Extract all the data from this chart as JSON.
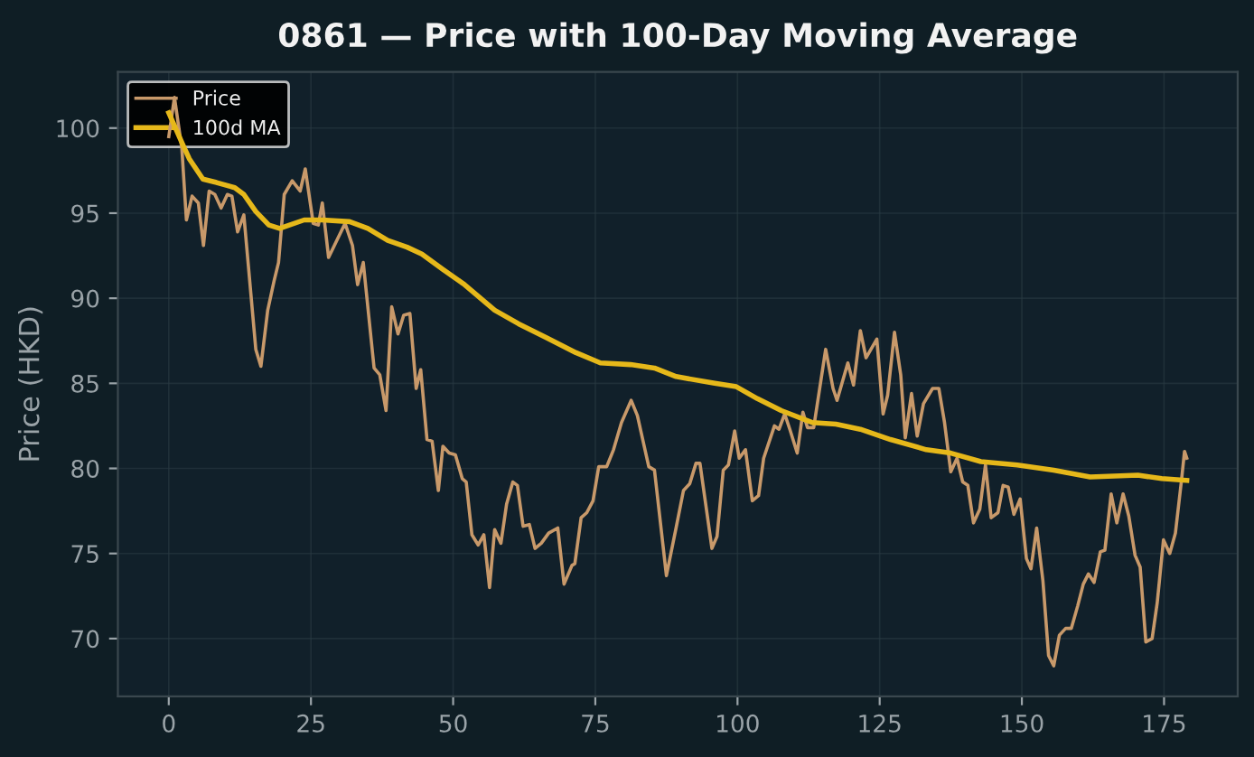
{
  "chart_data": {
    "type": "line",
    "title": "0861 — Price with 100-Day Moving Average",
    "ylabel": "Price (HKD)",
    "xlim": [
      -8.95,
      187.95
    ],
    "ylim": [
      66.6,
      103.3
    ],
    "xticks": [
      0,
      25,
      50,
      75,
      100,
      125,
      150,
      175
    ],
    "yticks": [
      70,
      75,
      80,
      85,
      90,
      95,
      100
    ],
    "grid": true,
    "legend": "top left",
    "marker": "none",
    "line_style": "solid",
    "series": [
      {
        "name": "Price",
        "color": "#c8996a",
        "x": [
          0,
          1,
          2.3,
          3.1,
          4.1,
          5.2,
          6.1,
          7.1,
          8.1,
          9.2,
          10.3,
          11.1,
          12.1,
          13.2,
          15.3,
          16.2,
          17.4,
          18.5,
          19.3,
          20.3,
          21.7,
          23.1,
          24,
          25.4,
          26.3,
          27,
          28.1,
          31,
          32.3,
          33.2,
          34.2,
          36.1,
          37.1,
          38.2,
          39.2,
          40.3,
          41.3,
          42.4,
          43.5,
          44.3,
          45.4,
          46.3,
          47.4,
          48.2,
          49.3,
          50.4,
          51.6,
          52.3,
          53.3,
          54.4,
          55.4,
          56.4,
          57.3,
          58.4,
          59.4,
          60.5,
          61.3,
          62.3,
          63.4,
          64.4,
          65.5,
          66.8,
          68.4,
          69.5,
          70.9,
          71.4,
          72.5,
          73.5,
          74.6,
          75.6,
          77,
          78.2,
          79.6,
          81.3,
          82.4,
          84.4,
          85.4,
          87.5,
          89.2,
          90.5,
          91.6,
          92.7,
          93.4,
          95.5,
          96.4,
          97.5,
          98.4,
          99.5,
          100.3,
          101.4,
          102.6,
          103.7,
          104.6,
          106.5,
          107.3,
          108.3,
          109.2,
          110.5,
          111.5,
          112.3,
          113.4,
          115.5,
          116.8,
          117.5,
          119.4,
          120.4,
          121.6,
          122.6,
          124.5,
          125.6,
          126.4,
          127.6,
          128.7,
          129.5,
          130.6,
          131.6,
          132.7,
          134.3,
          135.4,
          136.4,
          137.5,
          138.6,
          139.6,
          140.5,
          141.5,
          142.6,
          143.6,
          144.6,
          145.8,
          146.7,
          147.6,
          148.6,
          149.7,
          150.8,
          151.6,
          152.6,
          153.7,
          154.7,
          155.6,
          156.6,
          157.7,
          158.7,
          159.8,
          160.8,
          161.7,
          162.7,
          163.8,
          164.6,
          165.7,
          166.7,
          167.8,
          168.8,
          169.9,
          170.8,
          171.8,
          172.9,
          173.8,
          174.9,
          176,
          177,
          178.1,
          178.6,
          179
        ],
        "values": [
          99.5,
          101.8,
          98.8,
          94.6,
          96,
          95.6,
          93.1,
          96.3,
          96.1,
          95.3,
          96.1,
          96,
          93.9,
          94.9,
          87,
          86,
          89.3,
          91,
          92.1,
          96.1,
          96.9,
          96.3,
          97.6,
          94.4,
          94.3,
          95.6,
          92.4,
          94.4,
          93.1,
          90.8,
          92.1,
          85.9,
          85.5,
          83.4,
          89.5,
          87.9,
          89,
          89.1,
          84.7,
          85.8,
          81.7,
          81.6,
          78.7,
          81.3,
          80.9,
          80.8,
          79.4,
          79.2,
          76.1,
          75.5,
          76.1,
          73,
          76.4,
          75.6,
          77.9,
          79.2,
          79,
          76.6,
          76.7,
          75.3,
          75.6,
          76.2,
          76.5,
          73.2,
          74.3,
          74.4,
          77.1,
          77.4,
          78.1,
          80.1,
          80.1,
          81.1,
          82.7,
          84,
          83.1,
          80.1,
          79.9,
          73.7,
          76.5,
          78.7,
          79.1,
          80.3,
          80.3,
          75.3,
          76,
          79.9,
          80.2,
          82.2,
          80.6,
          81.1,
          78.1,
          78.4,
          80.6,
          82.5,
          82.3,
          83.2,
          82.3,
          80.9,
          83.3,
          82.4,
          82.4,
          87,
          84.7,
          84,
          86.2,
          84.9,
          88.1,
          86.5,
          87.6,
          83.2,
          84.3,
          88,
          85.5,
          81.8,
          84.4,
          81.9,
          83.8,
          84.7,
          84.7,
          82.7,
          79.8,
          80.6,
          79.2,
          79,
          76.8,
          77.6,
          80.2,
          77.1,
          77.4,
          79,
          78.9,
          77.3,
          78.2,
          74.7,
          74.1,
          76.5,
          73.4,
          69,
          68.4,
          70.2,
          70.6,
          70.6,
          71.9,
          73.2,
          73.8,
          73.3,
          75.1,
          75.2,
          78.5,
          76.8,
          78.5,
          77.2,
          74.9,
          74.2,
          69.8,
          70,
          72.1,
          75.8,
          75,
          76.2,
          79.4,
          81,
          80.6
        ]
      },
      {
        "name": "100d MA",
        "color": "#e6b81a",
        "x": [
          0,
          2.5,
          3.6,
          6,
          8.4,
          11.6,
          13.2,
          15.3,
          17.6,
          19.5,
          23.8,
          27,
          31.8,
          35,
          38.5,
          41.9,
          44.5,
          48.2,
          52,
          57.3,
          61.5,
          66.3,
          71.6,
          75.9,
          81.2,
          85.4,
          89.2,
          96,
          99.8,
          103.5,
          107.7,
          113.1,
          117.3,
          121.6,
          126.9,
          133.2,
          137.5,
          142.8,
          149.2,
          155.6,
          162,
          170.4,
          174.6,
          179
        ],
        "values": [
          100.9,
          99,
          98.2,
          97,
          96.8,
          96.5,
          96.1,
          95.1,
          94.3,
          94.1,
          94.6,
          94.6,
          94.5,
          94.1,
          93.4,
          93,
          92.6,
          91.7,
          90.8,
          89.3,
          88.5,
          87.7,
          86.8,
          86.2,
          86.1,
          85.9,
          85.4,
          85,
          84.8,
          84.1,
          83.4,
          82.7,
          82.6,
          82.3,
          81.7,
          81.1,
          80.9,
          80.4,
          80.2,
          79.9,
          79.5,
          79.6,
          79.4,
          79.3
        ]
      }
    ]
  }
}
